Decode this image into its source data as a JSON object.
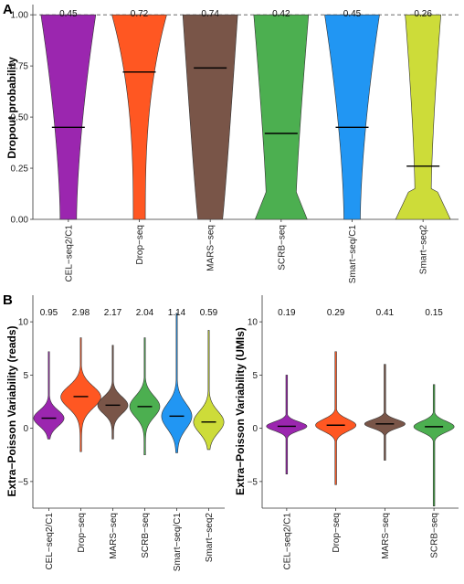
{
  "chart_data": [
    {
      "panel": "A",
      "type": "violin",
      "ylabel": "Dropout probability",
      "ylim": [
        0,
        1.05
      ],
      "yticks": [
        "0.00",
        "0.25",
        "0.50",
        "0.75",
        "1.00"
      ],
      "ytick_values": [
        0,
        0.25,
        0.5,
        0.75,
        1.0
      ],
      "reference_line": 1.0,
      "categories": [
        "CEL−seq2/C1",
        "Drop−seq",
        "MARS−seq",
        "SCRB−seq",
        "Smart−seq/C1",
        "Smart−seq2"
      ],
      "colors": [
        "#9b26af",
        "#ff5722",
        "#795548",
        "#4caf50",
        "#2196f3",
        "#cddc39"
      ],
      "median_labels": [
        "0.45",
        "0.72",
        "0.74",
        "0.42",
        "0.45",
        "0.26"
      ],
      "medians": [
        0.45,
        0.72,
        0.74,
        0.42,
        0.45,
        0.26
      ]
    },
    {
      "panel": "B",
      "type": "violin",
      "ylabel": "Extra−Poisson Variability (reads)",
      "ylim": [
        -7.5,
        12.5
      ],
      "yticks": [
        "−5",
        "0",
        "5",
        "10"
      ],
      "ytick_values": [
        -5,
        0,
        5,
        10
      ],
      "categories": [
        "CEL−seq2/C1",
        "Drop−seq",
        "MARS−seq",
        "SCRB−seq",
        "Smart−seq/C1",
        "Smart−seq2"
      ],
      "colors": [
        "#9b26af",
        "#ff5722",
        "#795548",
        "#4caf50",
        "#2196f3",
        "#cddc39"
      ],
      "median_labels": [
        "0.95",
        "2.98",
        "2.17",
        "2.04",
        "1.14",
        "0.59"
      ],
      "medians": [
        0.95,
        2.98,
        2.17,
        2.04,
        1.14,
        0.59
      ],
      "range": [
        [
          -1.0,
          7.2
        ],
        [
          -2.2,
          8.5
        ],
        [
          -1.0,
          7.8
        ],
        [
          -2.5,
          8.5
        ],
        [
          -2.3,
          10.8
        ],
        [
          -2.0,
          9.2
        ]
      ]
    },
    {
      "panel": "B2",
      "type": "violin",
      "ylabel": "Extra−Poisson Variability (UMIs)",
      "ylim": [
        -7.5,
        12.5
      ],
      "yticks": [
        "−5",
        "0",
        "5",
        "10"
      ],
      "ytick_values": [
        -5,
        0,
        5,
        10
      ],
      "categories": [
        "CEL−seq2/C1",
        "Drop−seq",
        "MARS−seq",
        "SCRB−seq"
      ],
      "colors": [
        "#9b26af",
        "#ff5722",
        "#795548",
        "#4caf50"
      ],
      "median_labels": [
        "0.19",
        "0.29",
        "0.41",
        "0.15"
      ],
      "medians": [
        0.19,
        0.29,
        0.41,
        0.15
      ],
      "range": [
        [
          -4.3,
          5.0
        ],
        [
          -5.3,
          7.2
        ],
        [
          -3.0,
          6.0
        ],
        [
          -7.3,
          4.1
        ]
      ]
    }
  ],
  "panel_letters": [
    "A",
    "B"
  ]
}
